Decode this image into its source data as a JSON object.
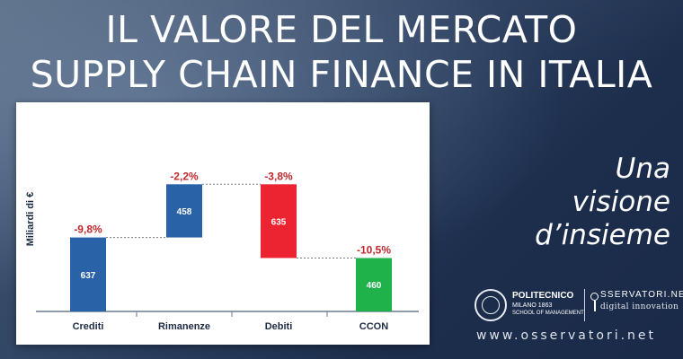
{
  "title": {
    "line1": "IL VALORE DEL MERCATO",
    "line2": "SUPPLY CHAIN FINANCE IN ITALIA"
  },
  "tagline": [
    "Una",
    "visione",
    "d’insieme"
  ],
  "logos": {
    "polimi": {
      "name": "POLITECNICO",
      "sub1": "MILANO 1863",
      "sub2": "SCHOOL OF MANAGEMENT"
    },
    "osservatori": {
      "name": "SSERVATORI.NET",
      "sub": "digital innovation"
    }
  },
  "website": "www.osservatori.net",
  "colors": {
    "background": "#243758",
    "blue_bar": "#2a62a8",
    "red_bar": "#ec2331",
    "green_bar": "#20b24a",
    "change_label": "#c0282d"
  },
  "chart_data": {
    "type": "bar",
    "subtype": "waterfall",
    "title": "",
    "xlabel": "",
    "ylabel": "Miliardi di €",
    "categories": [
      "Crediti",
      "Rimanenze",
      "Debiti",
      "CCON"
    ],
    "values": [
      637,
      458,
      635,
      460
    ],
    "value_labels": [
      "637",
      "458",
      "635",
      "460"
    ],
    "changes": [
      "-9,8%",
      "-2,2%",
      "-3,8%",
      "-10,5%"
    ],
    "bar_colors": [
      "#2a62a8",
      "#2a62a8",
      "#ec2331",
      "#20b24a"
    ],
    "operations": [
      "add",
      "add",
      "subtract",
      "total"
    ],
    "connector_lines": true,
    "grid": false
  }
}
